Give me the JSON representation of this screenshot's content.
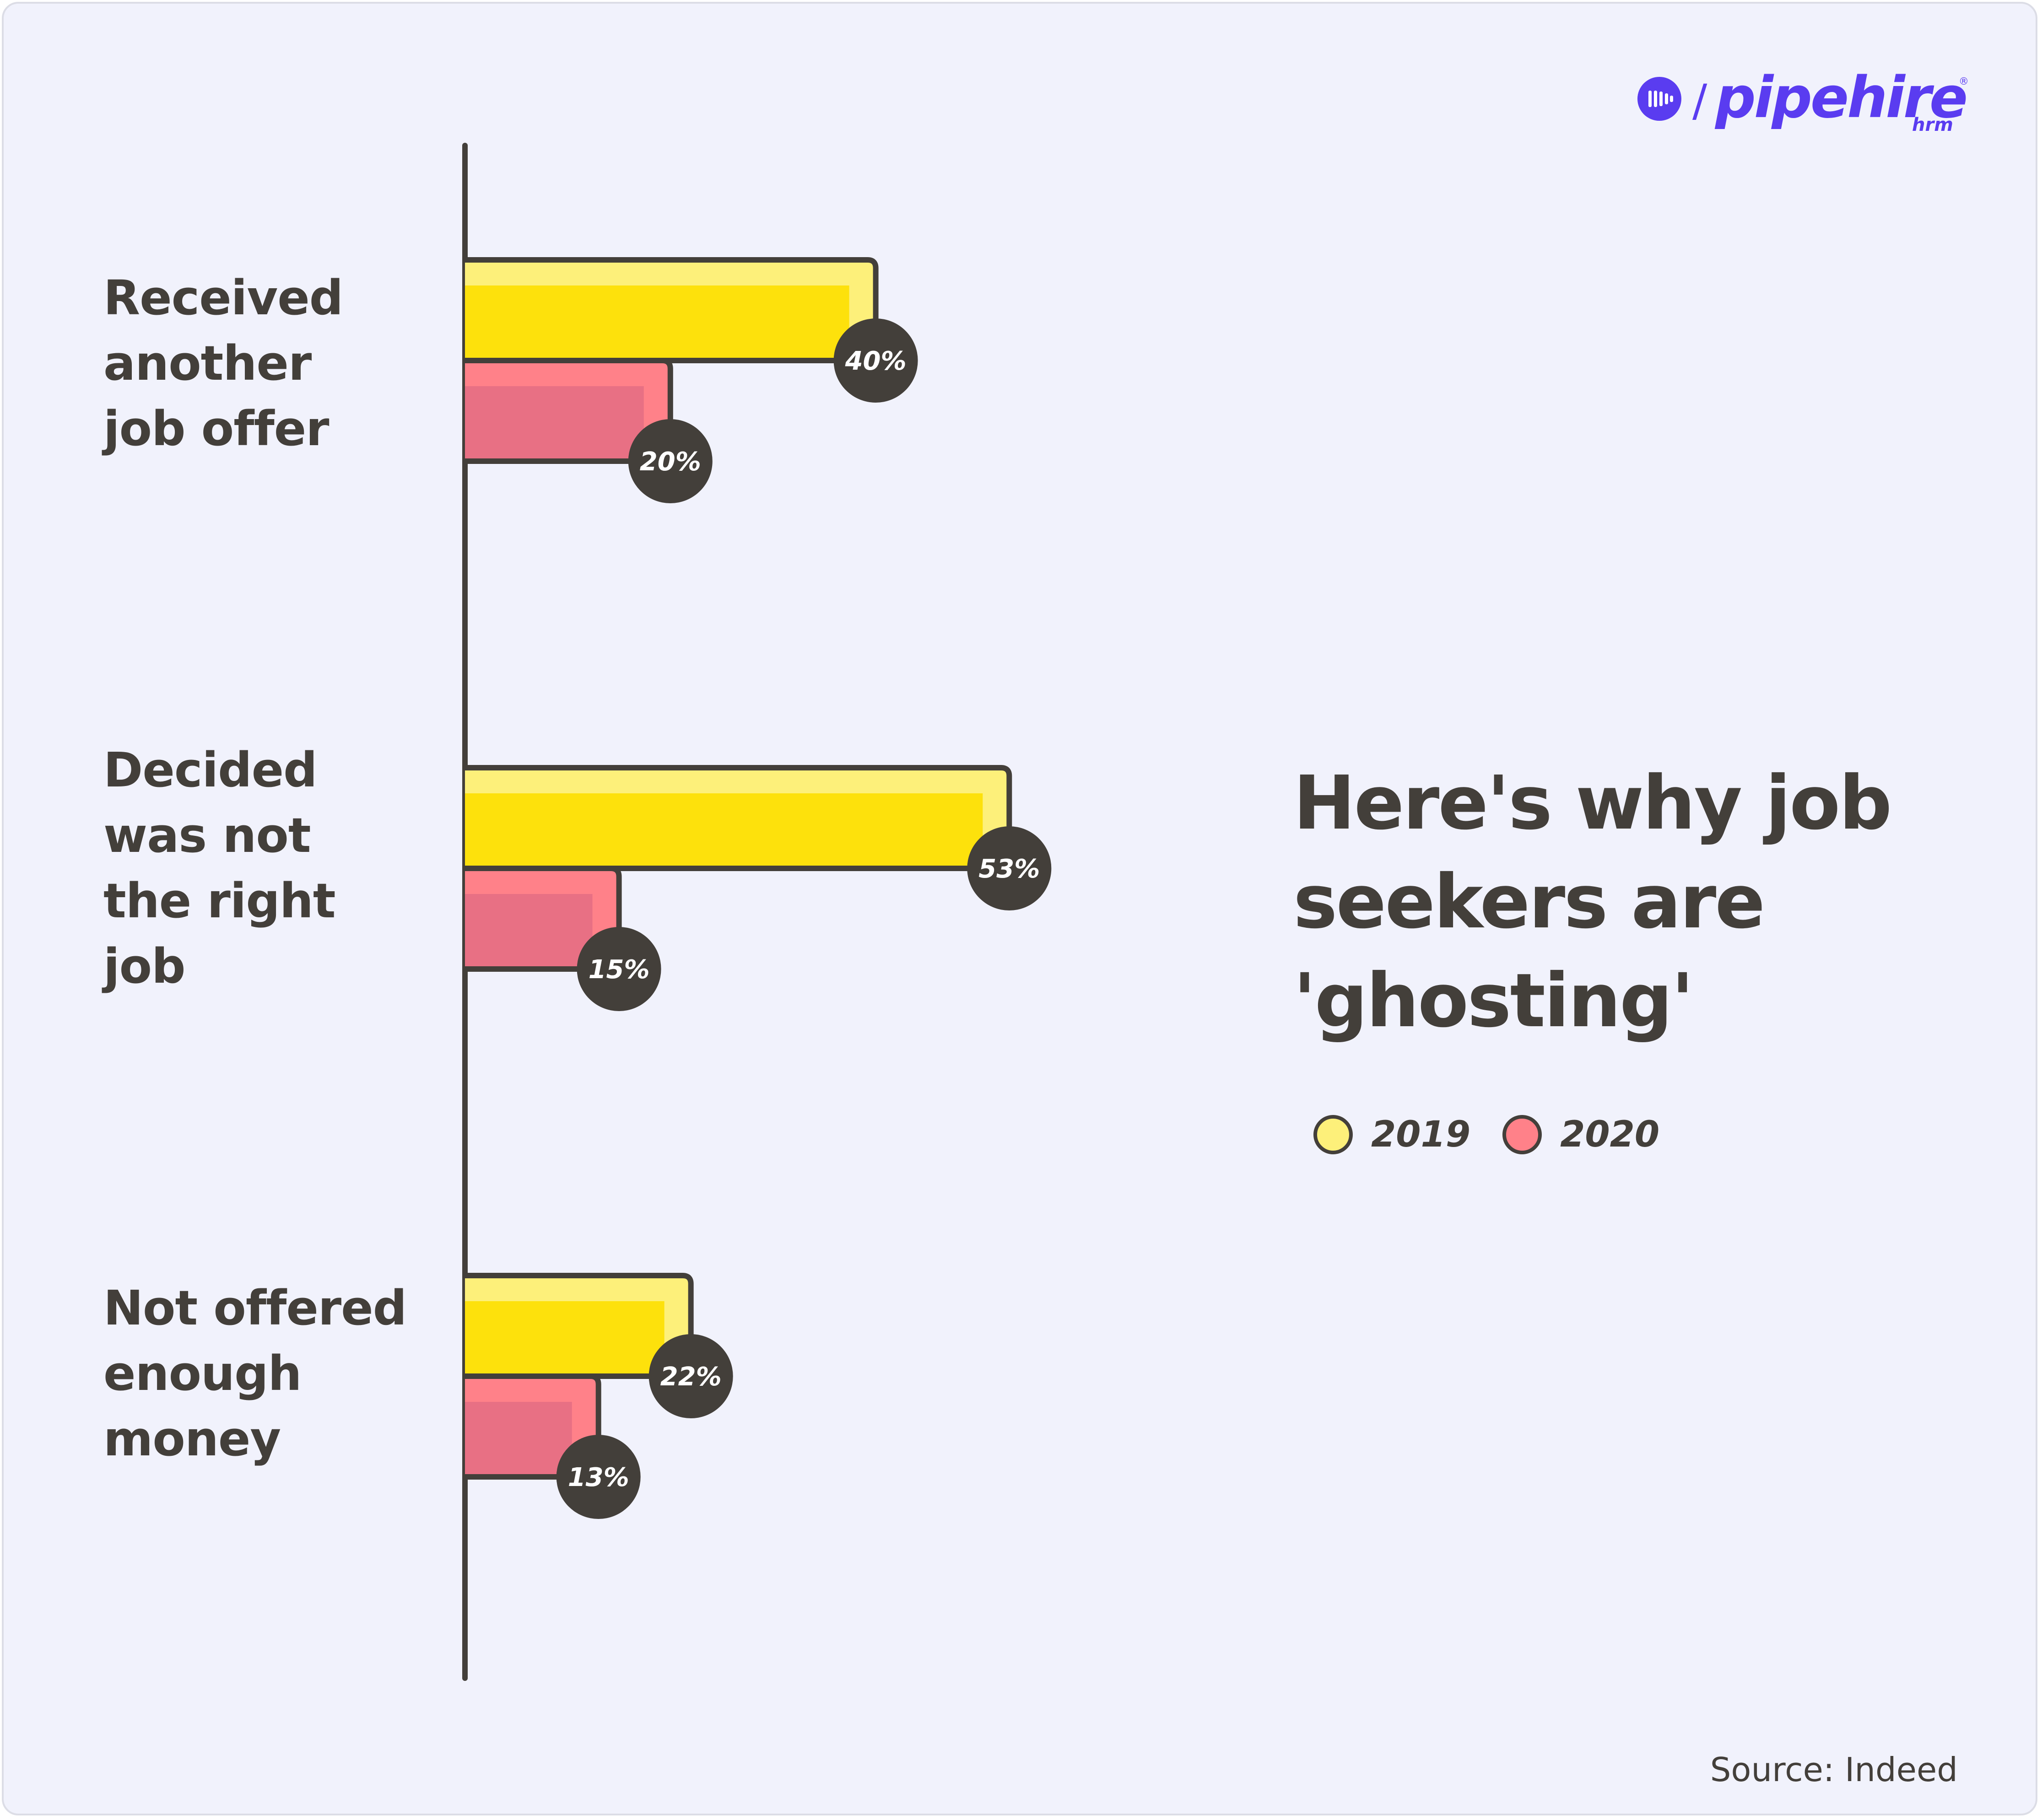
{
  "brand": {
    "name": "pipehire",
    "sub": "hrm",
    "registered": "®",
    "separator": "/",
    "color": "#5a3cf0"
  },
  "title": "Here's why job seekers are 'ghosting'",
  "source": "Source: Indeed",
  "chart_data": {
    "type": "bar",
    "orientation": "horizontal",
    "categories": [
      "Received another job offer",
      "Decided was not the right job",
      "Not offered enough money"
    ],
    "series": [
      {
        "name": "2019",
        "values": [
          40,
          53,
          22
        ],
        "labels": [
          "40%",
          "53%",
          "22%"
        ],
        "color": "#fde10c",
        "highlight": "#fdf07a"
      },
      {
        "name": "2020",
        "values": [
          20,
          15,
          13
        ],
        "labels": [
          "20%",
          "15%",
          "13%"
        ],
        "color": "#e87084",
        "highlight": "#ff8189"
      }
    ],
    "unit": "%",
    "grid": false,
    "legend_position": "right",
    "axis_color": "#433f3a"
  }
}
